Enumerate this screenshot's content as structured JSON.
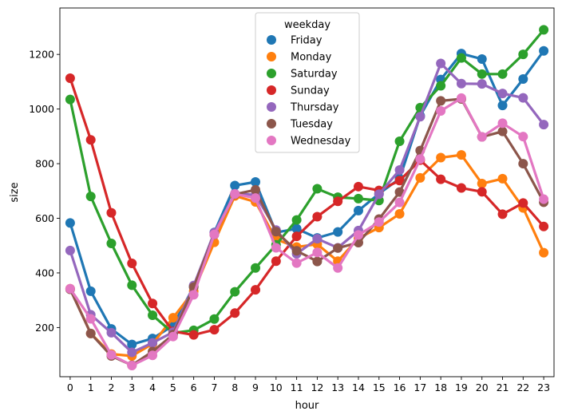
{
  "chart_data": {
    "type": "line",
    "xlabel": "hour",
    "ylabel": "size",
    "categories": [
      "0",
      "1",
      "2",
      "3",
      "4",
      "5",
      "6",
      "7",
      "8",
      "9",
      "10",
      "11",
      "12",
      "13",
      "14",
      "15",
      "16",
      "17",
      "18",
      "19",
      "20",
      "21",
      "22",
      "23"
    ],
    "y_ticks": [
      200,
      400,
      600,
      800,
      1000,
      1200
    ],
    "ylim": [
      20,
      1370
    ],
    "grid": false,
    "legend": {
      "title": "weekday",
      "position": "top-center"
    },
    "series": [
      {
        "name": "Friday",
        "color": "#1f77b4",
        "values": [
          583,
          333,
          195,
          138,
          160,
          207,
          350,
          548,
          720,
          733,
          548,
          562,
          528,
          550,
          628,
          690,
          745,
          975,
          1108,
          1203,
          1183,
          1013,
          1110,
          1213
        ]
      },
      {
        "name": "Monday",
        "color": "#ff7f0e",
        "values": [
          342,
          178,
          103,
          96,
          140,
          236,
          333,
          512,
          682,
          660,
          523,
          495,
          505,
          443,
          527,
          566,
          616,
          748,
          822,
          832,
          727,
          745,
          638,
          474
        ]
      },
      {
        "name": "Saturday",
        "color": "#2ca02c",
        "values": [
          1035,
          680,
          508,
          355,
          245,
          180,
          190,
          231,
          331,
          418,
          503,
          594,
          708,
          677,
          672,
          665,
          882,
          1005,
          1085,
          1187,
          1128,
          1128,
          1200,
          1290
        ]
      },
      {
        "name": "Sunday",
        "color": "#d62728",
        "values": [
          1113,
          887,
          620,
          435,
          288,
          186,
          173,
          192,
          253,
          338,
          443,
          534,
          606,
          662,
          716,
          702,
          738,
          813,
          743,
          711,
          697,
          615,
          656,
          570
        ]
      },
      {
        "name": "Thursday",
        "color": "#9467bd",
        "values": [
          482,
          247,
          181,
          109,
          144,
          183,
          354,
          547,
          690,
          686,
          557,
          470,
          525,
          492,
          555,
          688,
          777,
          972,
          1167,
          1093,
          1092,
          1057,
          1041,
          943
        ]
      },
      {
        "name": "Tuesday",
        "color": "#8c564b",
        "values": [
          340,
          178,
          96,
          62,
          112,
          174,
          348,
          540,
          688,
          704,
          551,
          481,
          442,
          491,
          511,
          597,
          696,
          848,
          1030,
          1037,
          898,
          918,
          800,
          659
        ]
      },
      {
        "name": "Wednesday",
        "color": "#e377c2",
        "values": [
          342,
          232,
          100,
          61,
          98,
          167,
          320,
          541,
          689,
          674,
          492,
          436,
          475,
          418,
          539,
          586,
          658,
          817,
          993,
          1040,
          898,
          948,
          899,
          670
        ]
      }
    ]
  }
}
